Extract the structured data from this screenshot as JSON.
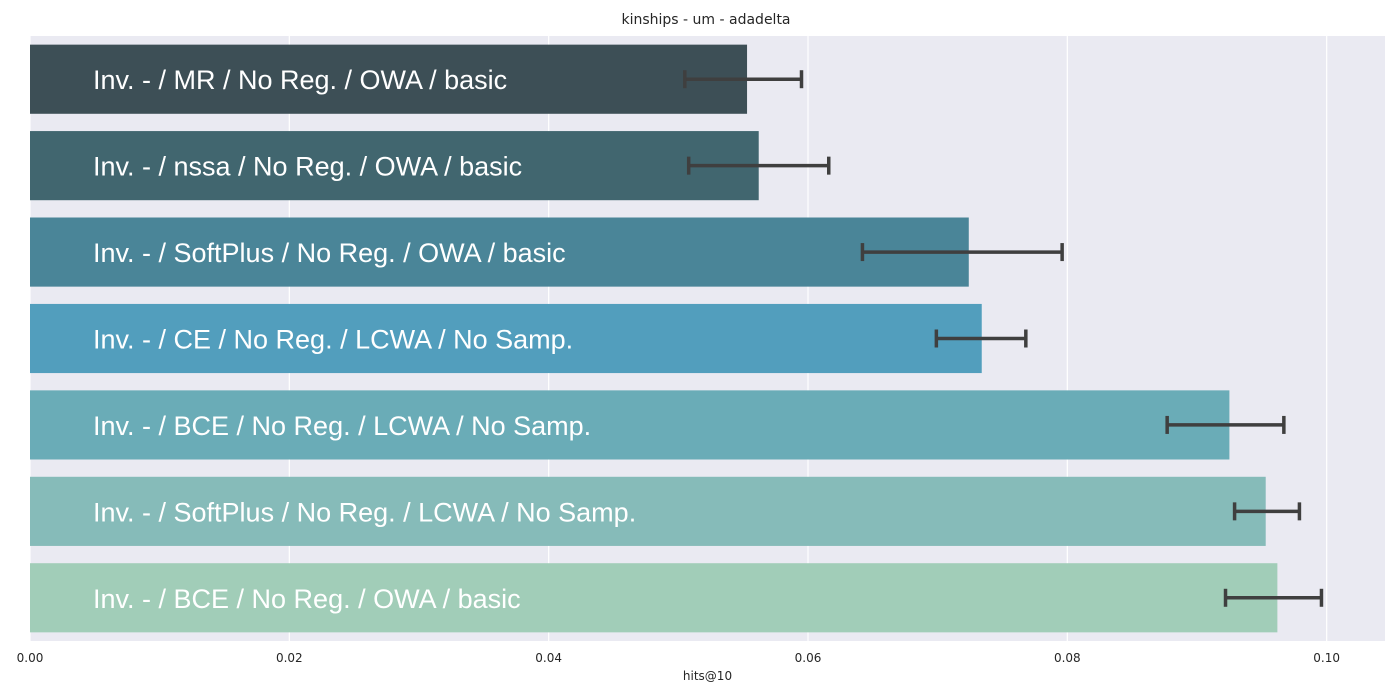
{
  "chart_data": {
    "type": "bar",
    "orientation": "horizontal",
    "title": "kinships - um - adadelta",
    "xlabel": "hits@10",
    "ylabel": "",
    "xlim": [
      0.0,
      0.1045
    ],
    "xticks": [
      0.0,
      0.02,
      0.04,
      0.06,
      0.08,
      0.1
    ],
    "xtick_labels": [
      "0.00",
      "0.02",
      "0.04",
      "0.06",
      "0.08",
      "0.10"
    ],
    "grid": true,
    "categories": [
      "Inv. - / MR / No Reg. / OWA / basic",
      "Inv. - / nssa / No Reg. / OWA / basic",
      "Inv. - / SoftPlus / No Reg. / OWA / basic",
      "Inv. - / CE / No Reg. / LCWA / No Samp.",
      "Inv. - / BCE / No Reg. / LCWA / No Samp.",
      "Inv. - / SoftPlus / No Reg. / LCWA / No Samp.",
      "Inv. - / BCE / No Reg. / OWA / basic"
    ],
    "values": [
      0.0553,
      0.0562,
      0.0724,
      0.0734,
      0.0925,
      0.0953,
      0.0962
    ],
    "error_low": [
      0.0505,
      0.0508,
      0.0642,
      0.0699,
      0.0877,
      0.0929,
      0.0922
    ],
    "error_high": [
      0.0595,
      0.0616,
      0.0796,
      0.0768,
      0.0967,
      0.0979,
      0.0996
    ],
    "colors": [
      "#3d4f56",
      "#41666f",
      "#4a8598",
      "#529ebd",
      "#6aacb7",
      "#86bbb9",
      "#a1cdb8"
    ]
  }
}
